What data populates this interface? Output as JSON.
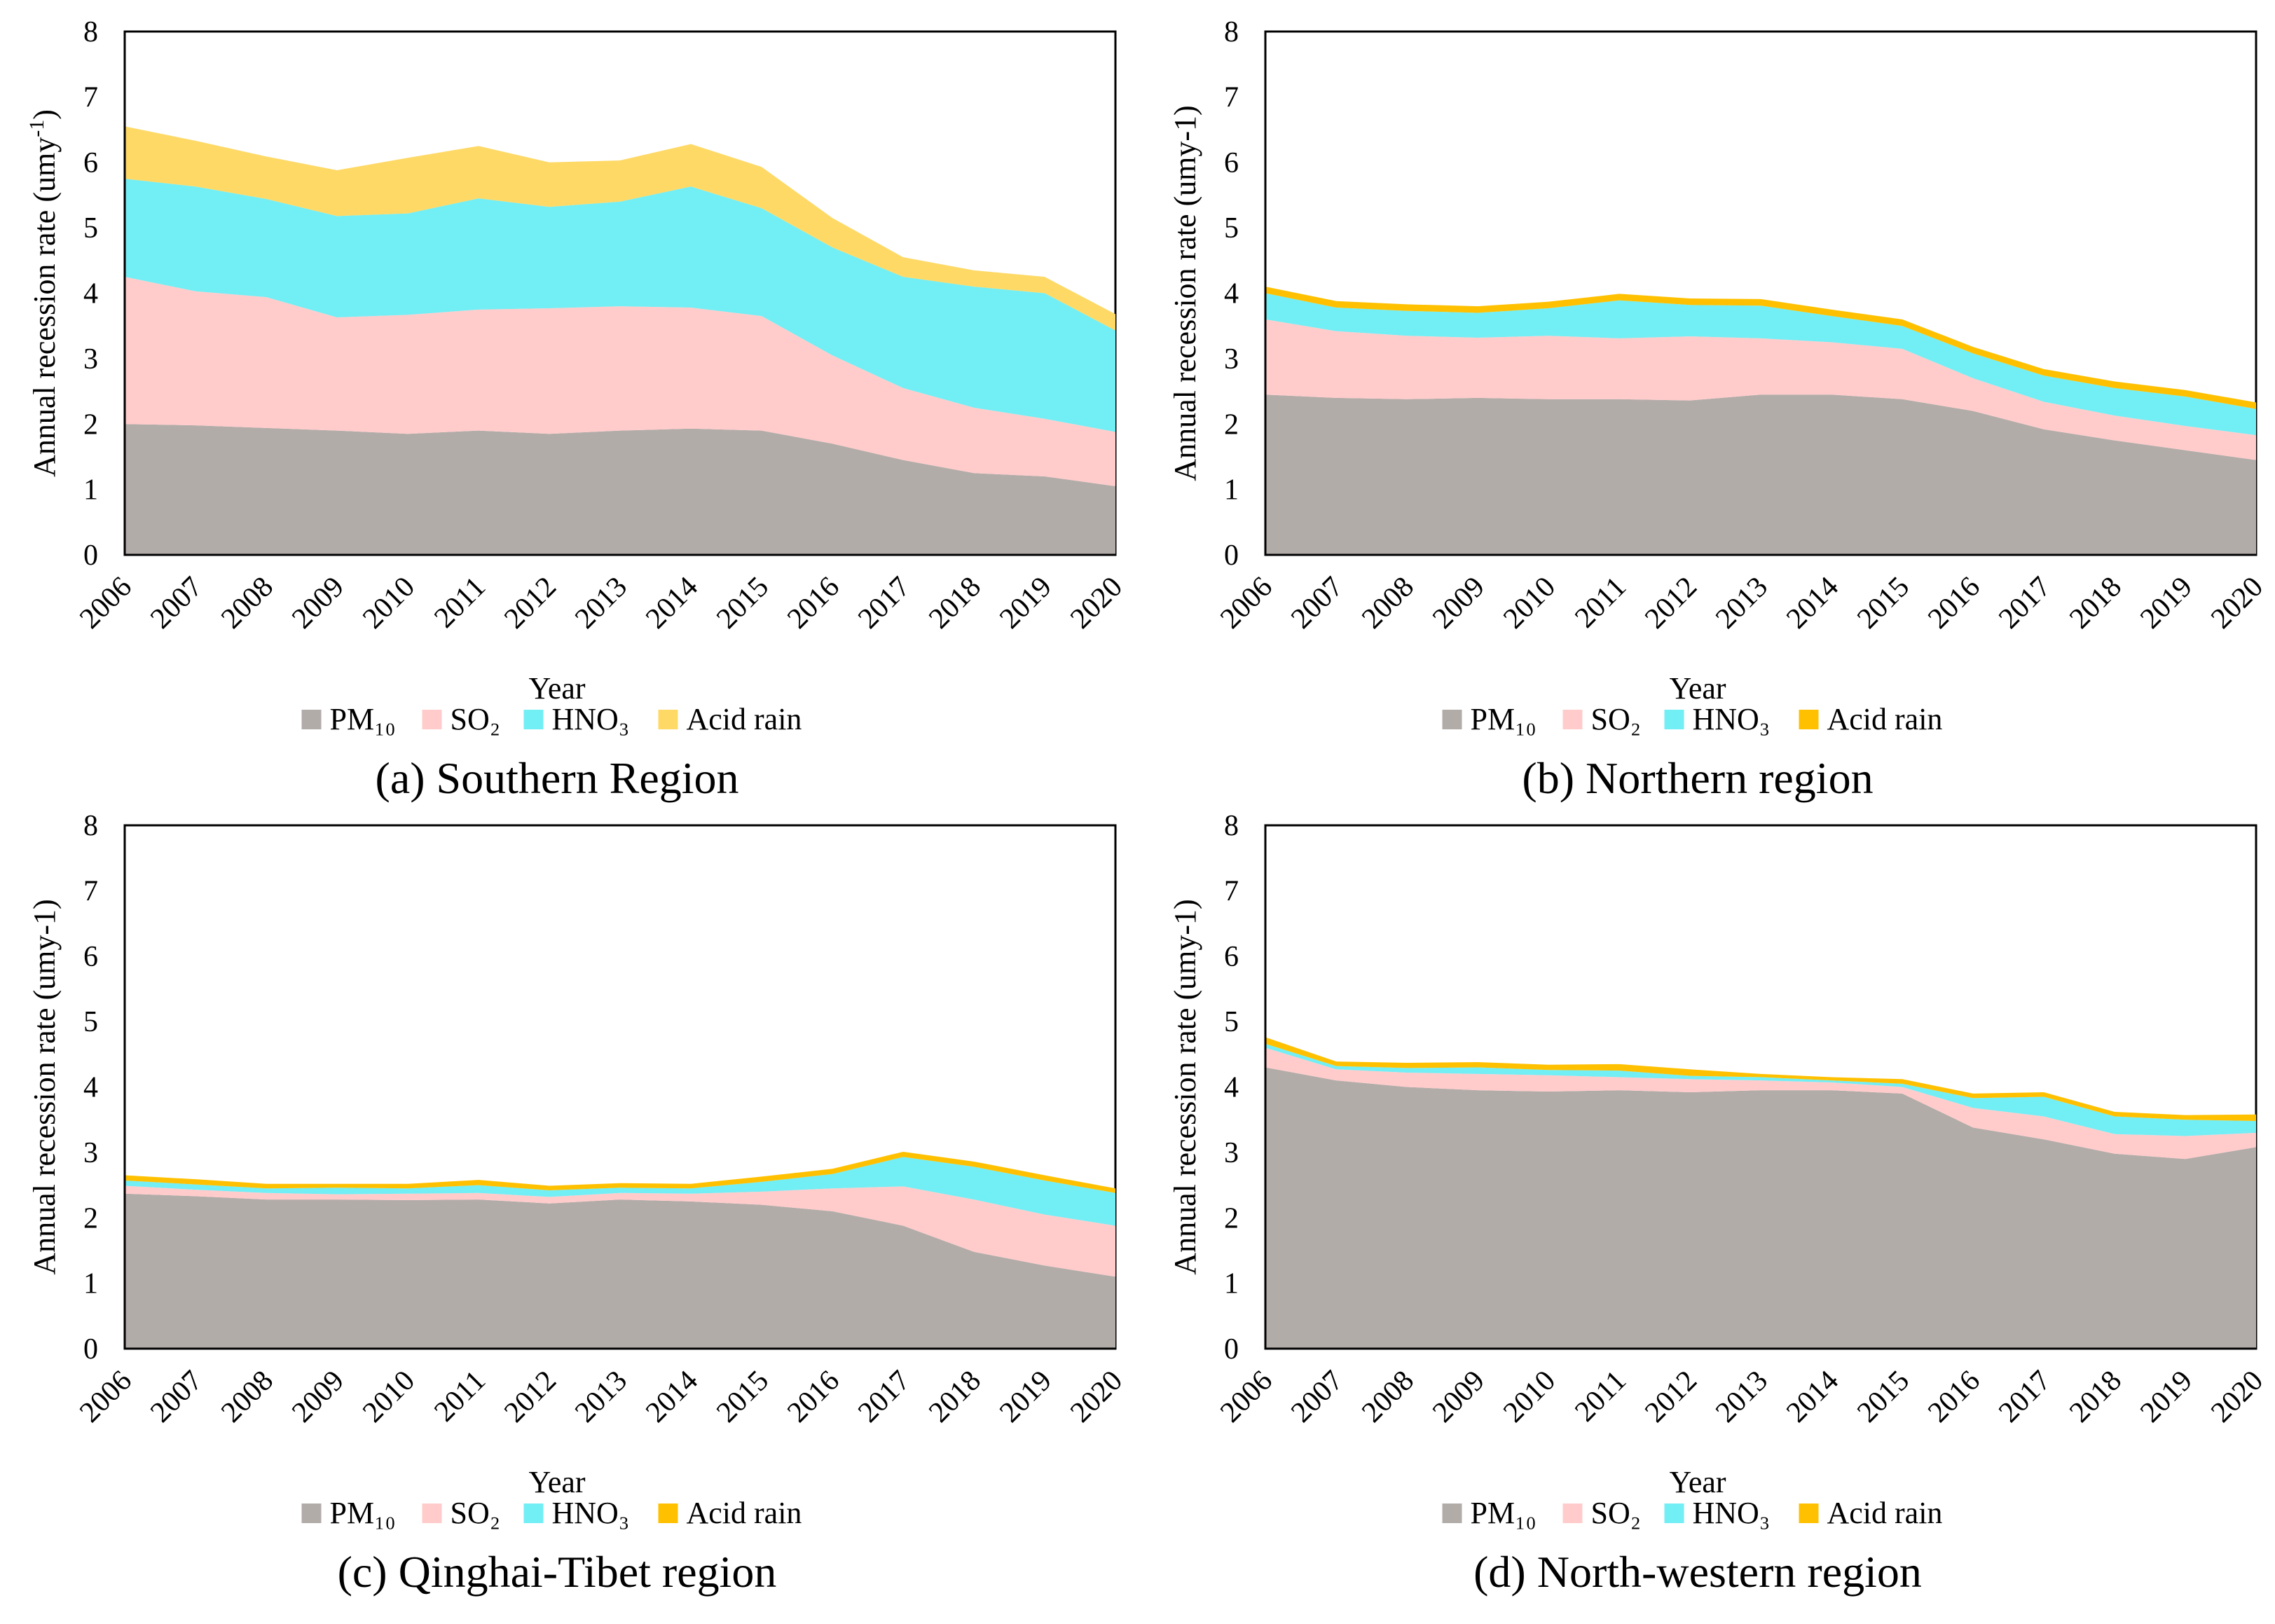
{
  "colors": {
    "PM10": "#b2aca9",
    "SO2": "#ffcccb",
    "HNO3": "#72eef5",
    "acid_light": "#ffd966",
    "acid_strong": "#ffc000"
  },
  "chart_data": [
    {
      "type": "area",
      "stacked": true,
      "title": "(a) Southern Region",
      "xlabel": "Year",
      "ylabel": "Annual recession rate (umy",
      "ylabel_sup": "-1",
      "ylabel_end": ")",
      "ylim": [
        0,
        8
      ],
      "yticks": [
        "0",
        "1",
        "2",
        "3",
        "4",
        "5",
        "6",
        "7",
        "8"
      ],
      "x": [
        "2006",
        "2007",
        "2008",
        "2009",
        "2010",
        "2011",
        "2012",
        "2013",
        "2014",
        "2015",
        "2016",
        "2017",
        "2018",
        "2019",
        "2020"
      ],
      "acid_color": "acid_light",
      "legend": [
        "PM₁₀",
        "SO₂",
        "HNO₃",
        "Acid rain"
      ],
      "series": [
        {
          "name": "PM10",
          "values": [
            2.0,
            1.98,
            1.94,
            1.9,
            1.85,
            1.9,
            1.85,
            1.9,
            1.93,
            1.9,
            1.7,
            1.45,
            1.25,
            1.2,
            1.05
          ]
        },
        {
          "name": "SO2",
          "values": [
            2.25,
            2.05,
            2.0,
            1.73,
            1.82,
            1.85,
            1.92,
            1.9,
            1.85,
            1.75,
            1.35,
            1.1,
            1.0,
            0.88,
            0.83
          ]
        },
        {
          "name": "HNO3",
          "values": [
            1.5,
            1.6,
            1.5,
            1.55,
            1.55,
            1.7,
            1.55,
            1.6,
            1.85,
            1.65,
            1.65,
            1.7,
            1.85,
            1.92,
            1.55
          ]
        },
        {
          "name": "Acid rain",
          "values": [
            0.8,
            0.7,
            0.65,
            0.7,
            0.85,
            0.8,
            0.68,
            0.63,
            0.65,
            0.63,
            0.45,
            0.3,
            0.25,
            0.25,
            0.25
          ]
        }
      ]
    },
    {
      "type": "area",
      "stacked": true,
      "title": "(b) Northern region",
      "xlabel": "Year",
      "ylabel": "Annual recession rate (umy-1)",
      "ylabel_sup": "",
      "ylabel_end": "",
      "ylim": [
        0,
        8
      ],
      "yticks": [
        "0",
        "1",
        "2",
        "3",
        "4",
        "5",
        "6",
        "7",
        "8"
      ],
      "x": [
        "2006",
        "2007",
        "2008",
        "2009",
        "2010",
        "2011",
        "2012",
        "2013",
        "2014",
        "2015",
        "2016",
        "2017",
        "2018",
        "2019",
        "2020"
      ],
      "acid_color": "acid_strong",
      "legend": [
        "PM₁₀",
        "SO₂",
        "HNO₃",
        "Acid rain"
      ],
      "series": [
        {
          "name": "PM10",
          "values": [
            2.45,
            2.4,
            2.38,
            2.4,
            2.38,
            2.38,
            2.36,
            2.45,
            2.45,
            2.38,
            2.2,
            1.92,
            1.75,
            1.6,
            1.45
          ]
        },
        {
          "name": "SO2",
          "values": [
            1.15,
            1.02,
            0.97,
            0.92,
            0.97,
            0.93,
            0.98,
            0.86,
            0.8,
            0.77,
            0.5,
            0.42,
            0.38,
            0.37,
            0.38
          ]
        },
        {
          "name": "HNO3",
          "values": [
            0.4,
            0.36,
            0.38,
            0.38,
            0.42,
            0.58,
            0.48,
            0.5,
            0.4,
            0.35,
            0.38,
            0.4,
            0.42,
            0.45,
            0.4
          ]
        },
        {
          "name": "Acid rain",
          "values": [
            0.1,
            0.1,
            0.1,
            0.1,
            0.1,
            0.1,
            0.1,
            0.1,
            0.1,
            0.1,
            0.1,
            0.1,
            0.1,
            0.1,
            0.1
          ]
        }
      ]
    },
    {
      "type": "area",
      "stacked": true,
      "title": "(c) Qinghai-Tibet region",
      "xlabel": "Year",
      "ylabel": "Annual recession rate (umy-1)",
      "ylabel_sup": "",
      "ylabel_end": "",
      "ylim": [
        0,
        8
      ],
      "yticks": [
        "0",
        "1",
        "2",
        "3",
        "4",
        "5",
        "6",
        "7",
        "8"
      ],
      "x": [
        "2006",
        "2007",
        "2008",
        "2009",
        "2010",
        "2011",
        "2012",
        "2013",
        "2014",
        "2015",
        "2016",
        "2017",
        "2018",
        "2019",
        "2020"
      ],
      "acid_color": "acid_strong",
      "legend": [
        "PM₁₀",
        "SO₂",
        "HNO₃",
        "Acid rain"
      ],
      "series": [
        {
          "name": "PM10",
          "values": [
            2.37,
            2.33,
            2.28,
            2.28,
            2.27,
            2.28,
            2.22,
            2.28,
            2.25,
            2.2,
            2.1,
            1.88,
            1.48,
            1.27,
            1.1
          ]
        },
        {
          "name": "SO2",
          "values": [
            0.12,
            0.1,
            0.1,
            0.08,
            0.1,
            0.1,
            0.1,
            0.1,
            0.12,
            0.2,
            0.35,
            0.6,
            0.8,
            0.78,
            0.78
          ]
        },
        {
          "name": "HNO3",
          "values": [
            0.08,
            0.08,
            0.07,
            0.1,
            0.08,
            0.12,
            0.1,
            0.08,
            0.08,
            0.15,
            0.22,
            0.45,
            0.5,
            0.52,
            0.5
          ]
        },
        {
          "name": "Acid rain",
          "values": [
            0.08,
            0.08,
            0.07,
            0.06,
            0.07,
            0.08,
            0.07,
            0.07,
            0.07,
            0.08,
            0.08,
            0.08,
            0.08,
            0.08,
            0.07
          ]
        }
      ]
    },
    {
      "type": "area",
      "stacked": true,
      "title": "(d) North-western region",
      "xlabel": "Year",
      "ylabel": "Annual recession rate (umy-1)",
      "ylabel_sup": "",
      "ylabel_end": "",
      "ylim": [
        0,
        8
      ],
      "yticks": [
        "0",
        "1",
        "2",
        "3",
        "4",
        "5",
        "6",
        "7",
        "8"
      ],
      "x": [
        "2006",
        "2007",
        "2008",
        "2009",
        "2010",
        "2011",
        "2012",
        "2013",
        "2014",
        "2015",
        "2016",
        "2017",
        "2018",
        "2019",
        "2020"
      ],
      "acid_color": "acid_strong",
      "legend": [
        "PM₁₀",
        "SO₂",
        "HNO₃",
        "Acid rain"
      ],
      "series": [
        {
          "name": "PM10",
          "values": [
            4.3,
            4.1,
            4.0,
            3.95,
            3.93,
            3.95,
            3.92,
            3.95,
            3.95,
            3.9,
            3.38,
            3.2,
            2.98,
            2.9,
            3.08
          ]
        },
        {
          "name": "SO2",
          "values": [
            0.3,
            0.17,
            0.22,
            0.25,
            0.25,
            0.2,
            0.2,
            0.15,
            0.12,
            0.1,
            0.3,
            0.35,
            0.3,
            0.35,
            0.22
          ]
        },
        {
          "name": "HNO3",
          "values": [
            0.06,
            0.05,
            0.07,
            0.1,
            0.08,
            0.1,
            0.05,
            0.05,
            0.03,
            0.05,
            0.15,
            0.3,
            0.27,
            0.25,
            0.18
          ]
        },
        {
          "name": "Acid rain",
          "values": [
            0.1,
            0.07,
            0.08,
            0.08,
            0.08,
            0.1,
            0.1,
            0.05,
            0.05,
            0.07,
            0.07,
            0.07,
            0.07,
            0.07,
            0.1
          ]
        }
      ]
    }
  ]
}
